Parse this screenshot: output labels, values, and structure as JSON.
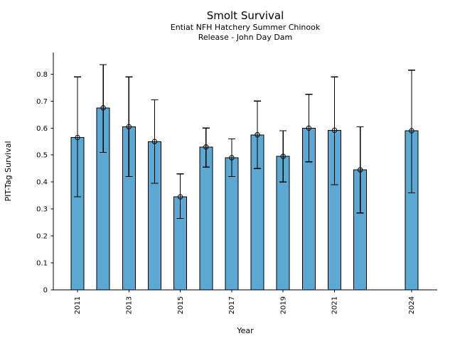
{
  "figure": {
    "title": "Smolt Survival",
    "subtitle_line1": "Entiat NFH Hatchery Summer Chinook",
    "subtitle_line2": "Release - John Day Dam"
  },
  "chart_data": {
    "type": "bar",
    "title": "Smolt Survival",
    "subtitle1": "Entiat NFH Hatchery Summer Chinook",
    "subtitle2": "Release - John Day Dam",
    "xlabel": "Year",
    "ylabel": "PIT-Tag Survival",
    "xlim": [
      2010,
      2025
    ],
    "ylim": [
      0,
      0.88
    ],
    "yticks": [
      0,
      0.1,
      0.2,
      0.3,
      0.4,
      0.5,
      0.6,
      0.7,
      0.8
    ],
    "xtick_years": [
      2011,
      2013,
      2015,
      2017,
      2019,
      2021,
      2024
    ],
    "grid": false,
    "legend": false,
    "marker": "open-circle",
    "error_bars": true,
    "missing_years": [
      2023
    ],
    "colors": {
      "bar_fill": "#5CA8D2",
      "bar_edge": "#000000",
      "error_line": "#000000",
      "marker_edge": "#000000",
      "text": "#000000",
      "background": "#ffffff"
    },
    "series": [
      {
        "name": "PIT-Tag Survival",
        "points": [
          {
            "year": 2011,
            "value": 0.565,
            "ci_low": 0.345,
            "ci_high": 0.79
          },
          {
            "year": 2012,
            "value": 0.675,
            "ci_low": 0.51,
            "ci_high": 0.835
          },
          {
            "year": 2013,
            "value": 0.605,
            "ci_low": 0.42,
            "ci_high": 0.79
          },
          {
            "year": 2014,
            "value": 0.55,
            "ci_low": 0.395,
            "ci_high": 0.705
          },
          {
            "year": 2015,
            "value": 0.345,
            "ci_low": 0.265,
            "ci_high": 0.43
          },
          {
            "year": 2016,
            "value": 0.53,
            "ci_low": 0.455,
            "ci_high": 0.6
          },
          {
            "year": 2017,
            "value": 0.49,
            "ci_low": 0.42,
            "ci_high": 0.56
          },
          {
            "year": 2018,
            "value": 0.575,
            "ci_low": 0.45,
            "ci_high": 0.7
          },
          {
            "year": 2019,
            "value": 0.495,
            "ci_low": 0.4,
            "ci_high": 0.59
          },
          {
            "year": 2020,
            "value": 0.6,
            "ci_low": 0.475,
            "ci_high": 0.725
          },
          {
            "year": 2021,
            "value": 0.592,
            "ci_low": 0.39,
            "ci_high": 0.79
          },
          {
            "year": 2022,
            "value": 0.445,
            "ci_low": 0.285,
            "ci_high": 0.605
          },
          {
            "year": 2024,
            "value": 0.59,
            "ci_low": 0.36,
            "ci_high": 0.815
          }
        ]
      }
    ]
  }
}
